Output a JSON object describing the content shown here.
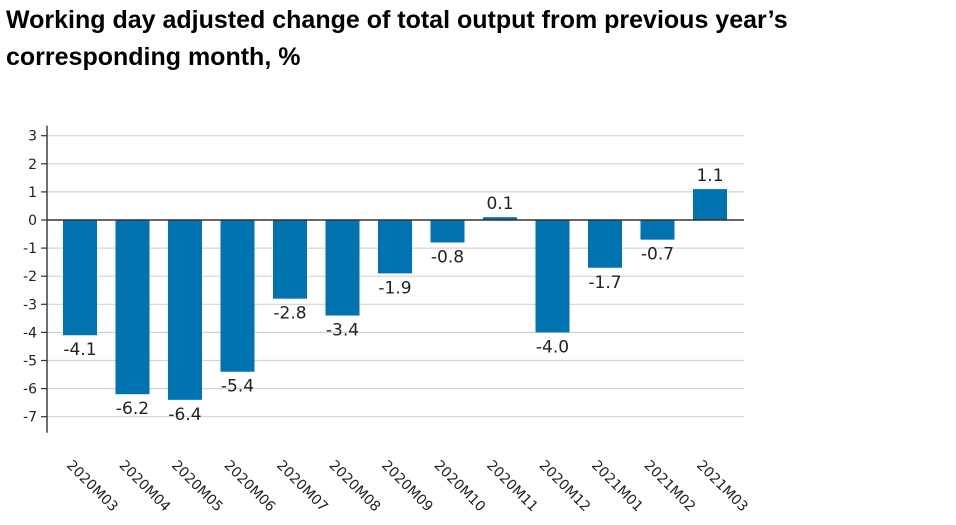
{
  "title": "Working day adjusted change of total output from previous year’s corresponding month, %",
  "colors": {
    "bar": "#0073b0",
    "grid": "#d4d4d4",
    "axis": "#333333"
  },
  "chart_data": {
    "type": "bar",
    "title": "Working day adjusted change of total output from previous year’s corresponding month, %",
    "xlabel": "",
    "ylabel": "",
    "ylim": [
      -7.5,
      3.5
    ],
    "yticks": [
      3,
      2,
      1,
      0,
      -1,
      -2,
      -3,
      -4,
      -5,
      -6,
      -7
    ],
    "ytick_labels": [
      "3",
      "2",
      "1",
      "0",
      "-1",
      "-2",
      "-3",
      "-4",
      "-5",
      "-6",
      "-7"
    ],
    "grid": true,
    "categories": [
      "2020M03",
      "2020M04",
      "2020M05",
      "2020M06",
      "2020M07",
      "2020M08",
      "2020M09",
      "2020M10",
      "2020M11",
      "2020M12",
      "2021M01",
      "2021M02",
      "2021M03"
    ],
    "values": [
      -4.1,
      -6.2,
      -6.4,
      -5.4,
      -2.8,
      -3.4,
      -1.9,
      -0.8,
      0.1,
      -4.0,
      -1.7,
      -0.7,
      1.1
    ],
    "value_labels": [
      "-4.1",
      "-6.2",
      "-6.4",
      "-5.4",
      "-2.8",
      "-3.4",
      "-1.9",
      "-0.8",
      "0.1",
      "-4.0",
      "-1.7",
      "-0.7",
      "1.1"
    ]
  }
}
